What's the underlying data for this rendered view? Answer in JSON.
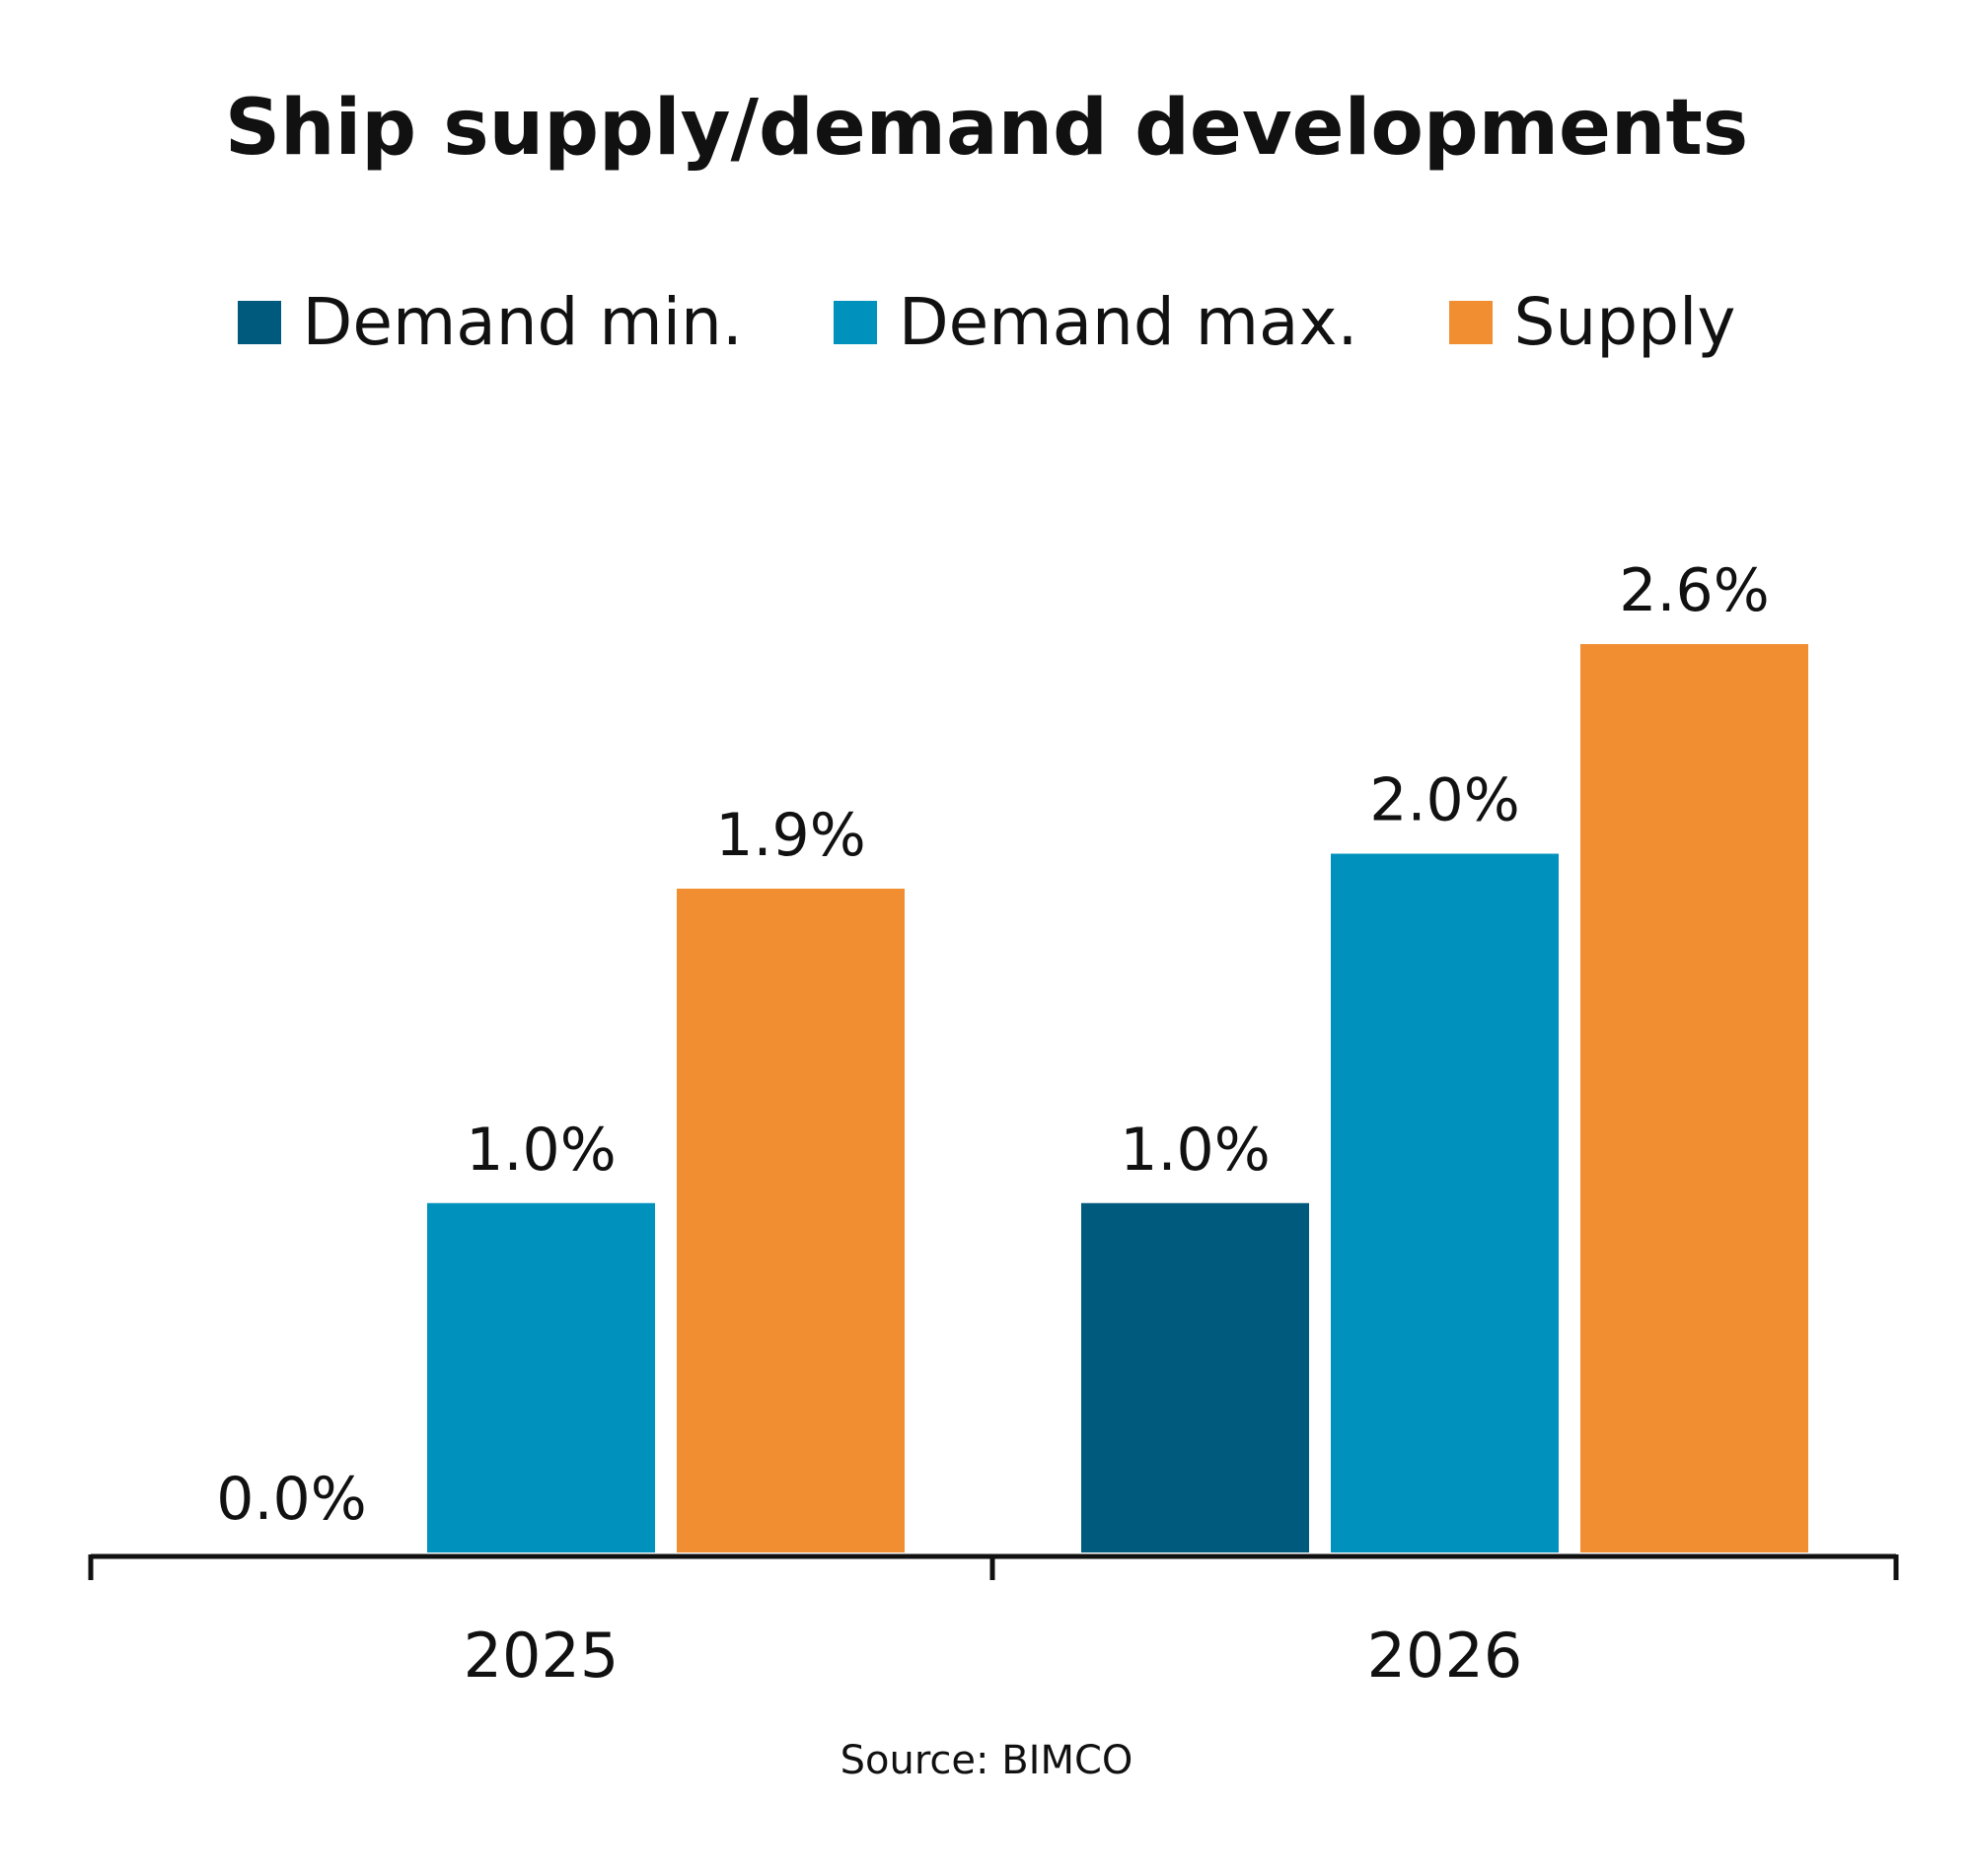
{
  "chart_data": {
    "type": "bar",
    "title": "Ship supply/demand developments",
    "categories": [
      "2025",
      "2026"
    ],
    "series": [
      {
        "name": "Demand min.",
        "color": "#005a7d",
        "values": [
          0.0,
          1.0
        ],
        "labels": [
          "0.0%",
          "1.0%"
        ]
      },
      {
        "name": "Demand max.",
        "color": "#0092bd",
        "values": [
          1.0,
          2.0
        ],
        "labels": [
          "1.0%",
          "2.0%"
        ]
      },
      {
        "name": "Supply",
        "color": "#f28e32",
        "values": [
          1.9,
          2.6
        ],
        "labels": [
          "1.9%",
          "2.6%"
        ]
      }
    ],
    "ylim": [
      0,
      2.6
    ],
    "legend_position": "top",
    "grid": false,
    "source": "Source: BIMCO"
  }
}
